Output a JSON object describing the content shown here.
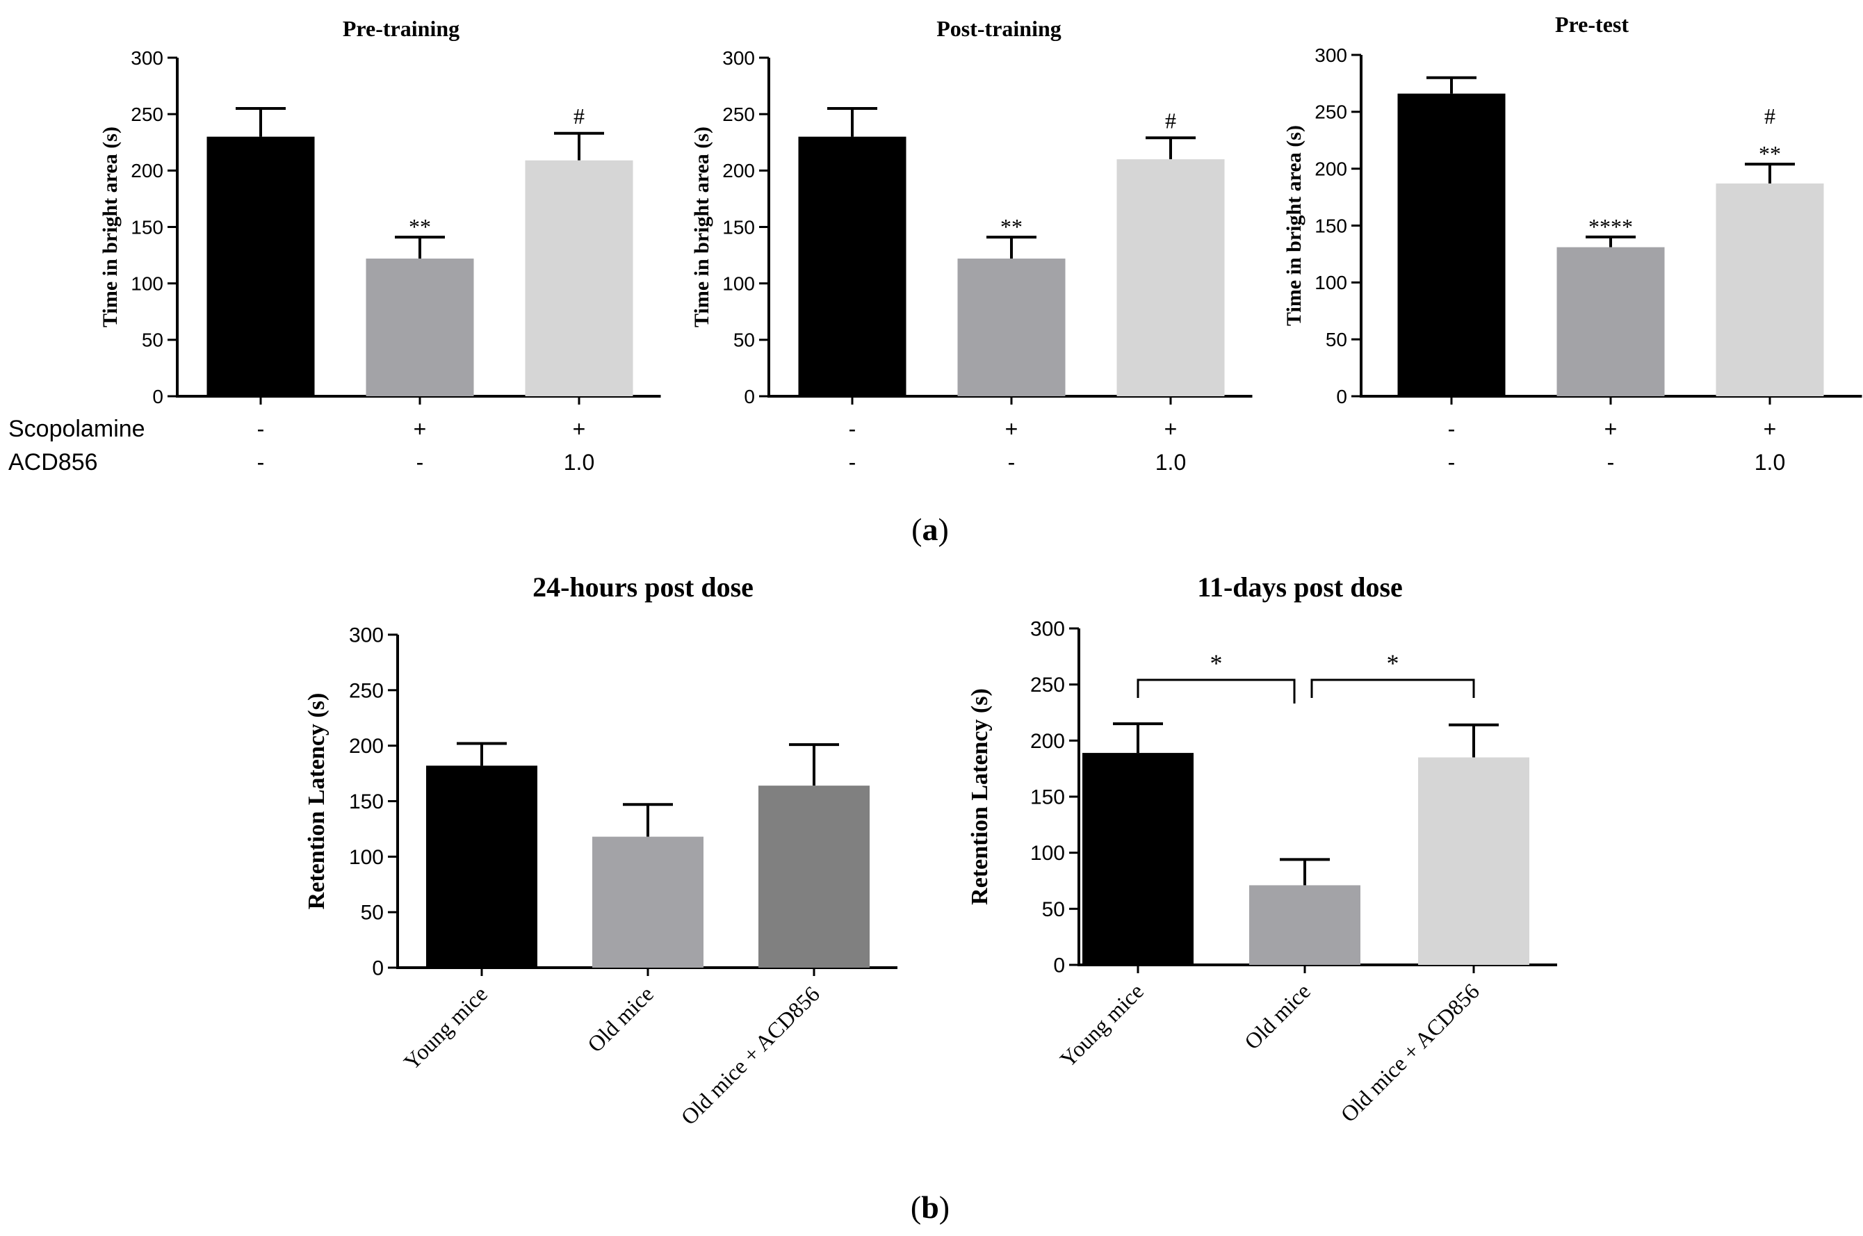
{
  "figure": {
    "panel_a_label": "(a)",
    "panel_b_label": "(b)",
    "panel_a_letter": "a",
    "panel_b_letter": "b",
    "row_labels": [
      "Scopolamine",
      "ACD856"
    ],
    "scopolamine_values": [
      "-",
      "+",
      "+"
    ],
    "acd856_values": [
      "-",
      "-",
      "1.0"
    ]
  },
  "colors": {
    "black": "#000000",
    "mid_grey": "#a3a3a7",
    "light_grey": "#d6d6d6",
    "dark_grey": "#808080"
  },
  "chart_data": [
    {
      "type": "bar",
      "title": "Pre-training",
      "xlabel": "",
      "ylabel": "Time in  bright area (s)",
      "ylim": [
        0,
        300
      ],
      "yticks": [
        0,
        50,
        100,
        150,
        200,
        250,
        300
      ],
      "categories": [
        "Scopolamine - / ACD856 -",
        "Scopolamine + / ACD856 -",
        "Scopolamine + / ACD856 1.0"
      ],
      "values": [
        230,
        122,
        209
      ],
      "errors": [
        25,
        19,
        24
      ],
      "annotations": [
        [],
        [
          "**"
        ],
        [
          "#"
        ]
      ],
      "bar_colors": [
        "#000000",
        "#a3a3a7",
        "#d6d6d6"
      ]
    },
    {
      "type": "bar",
      "title": "Post-training",
      "xlabel": "",
      "ylabel": "Time in  bright area (s)",
      "ylim": [
        0,
        300
      ],
      "yticks": [
        0,
        50,
        100,
        150,
        200,
        250,
        300
      ],
      "categories": [
        "Scopolamine - / ACD856 -",
        "Scopolamine + / ACD856 -",
        "Scopolamine + / ACD856 1.0"
      ],
      "values": [
        230,
        122,
        210
      ],
      "errors": [
        25,
        19,
        19
      ],
      "annotations": [
        [],
        [
          "**"
        ],
        [
          "#"
        ]
      ],
      "bar_colors": [
        "#000000",
        "#a3a3a7",
        "#d6d6d6"
      ]
    },
    {
      "type": "bar",
      "title": "Pre-test",
      "xlabel": "",
      "ylabel": "Time in  bright area (s)",
      "ylim": [
        0,
        300
      ],
      "yticks": [
        0,
        50,
        100,
        150,
        200,
        250,
        300
      ],
      "categories": [
        "Scopolamine - / ACD856 -",
        "Scopolamine + / ACD856 -",
        "Scopolamine + / ACD856 1.0"
      ],
      "values": [
        266,
        131,
        187
      ],
      "errors": [
        14,
        9,
        17
      ],
      "annotations": [
        [],
        [
          "****"
        ],
        [
          "**",
          "#"
        ]
      ],
      "bar_colors": [
        "#000000",
        "#a3a3a7",
        "#d6d6d6"
      ]
    },
    {
      "type": "bar",
      "title": "24-hours post dose",
      "xlabel": "",
      "ylabel": "Retention Latency (s)",
      "ylim": [
        0,
        300
      ],
      "yticks": [
        0,
        50,
        100,
        150,
        200,
        250,
        300
      ],
      "categories": [
        "Young mice",
        "Old mice",
        "Old mice + ACD856"
      ],
      "values": [
        182,
        118,
        164
      ],
      "errors": [
        20,
        29,
        37
      ],
      "annotations": [
        [],
        [],
        []
      ],
      "bar_colors": [
        "#000000",
        "#a3a3a7",
        "#808080"
      ]
    },
    {
      "type": "bar",
      "title": "11-days post dose",
      "xlabel": "",
      "ylabel": "Retention Latency (s)",
      "ylim": [
        0,
        300
      ],
      "yticks": [
        0,
        50,
        100,
        150,
        200,
        250,
        300
      ],
      "categories": [
        "Young mice",
        "Old mice",
        "Old mice + ACD856"
      ],
      "values": [
        189,
        71,
        185
      ],
      "errors": [
        26,
        23,
        29
      ],
      "annotations": [
        [],
        [],
        []
      ],
      "bar_colors": [
        "#000000",
        "#a3a3a7",
        "#d6d6d6"
      ],
      "significance": [
        {
          "from": 0,
          "to": 1,
          "label": "*"
        },
        {
          "from": 1,
          "to": 2,
          "label": "*"
        }
      ]
    }
  ]
}
